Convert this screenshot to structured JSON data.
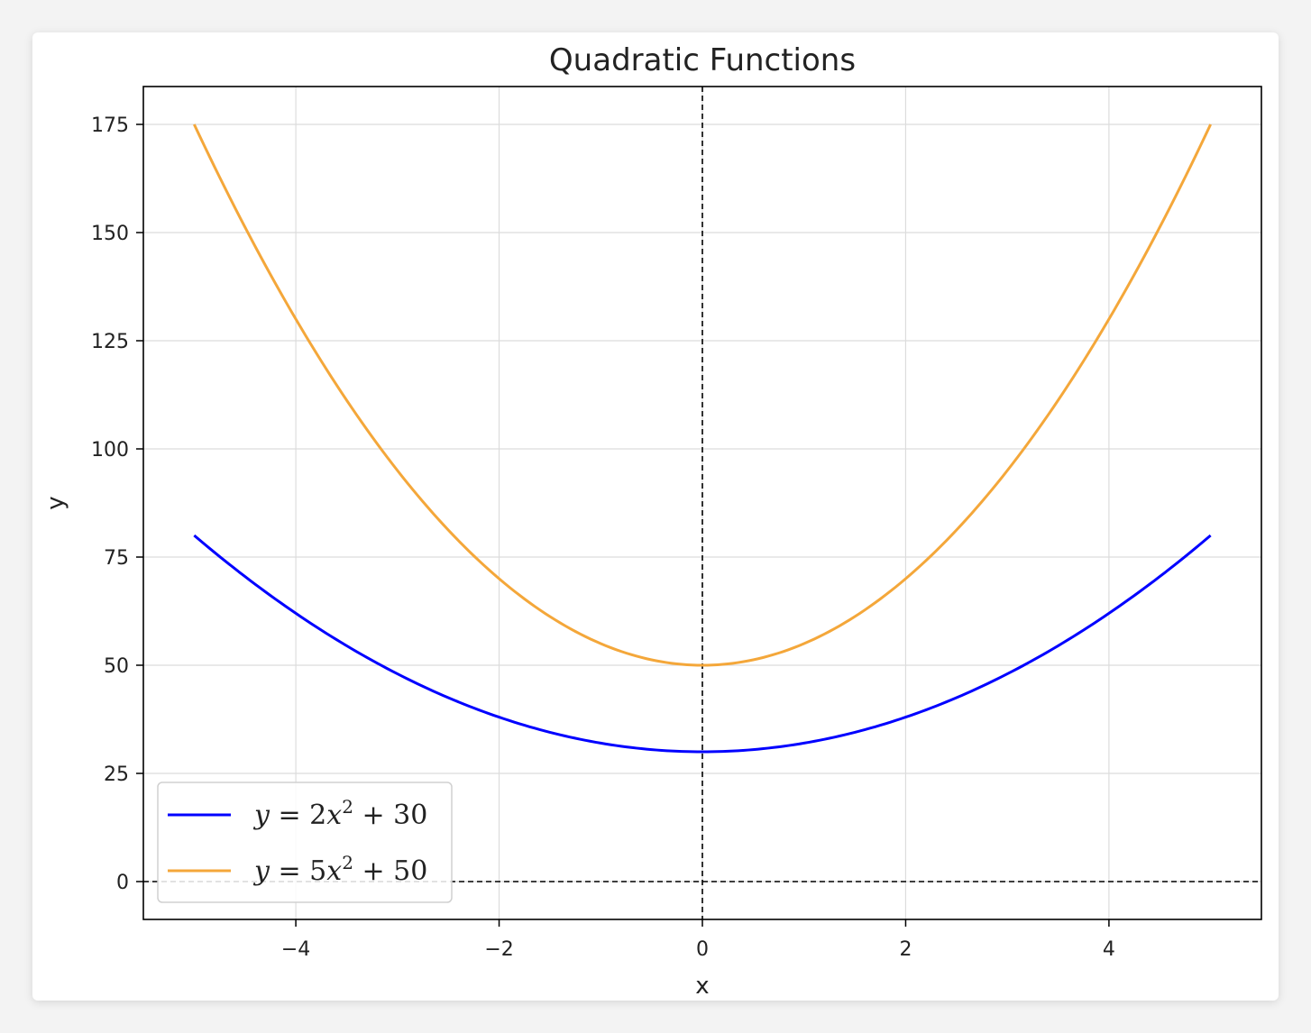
{
  "chart_data": {
    "type": "line",
    "title": "Quadratic Functions",
    "xlabel": "x",
    "ylabel": "y",
    "xlim": [
      -5.5,
      5.5
    ],
    "ylim": [
      -8.75,
      183.75
    ],
    "xticks": [
      -4,
      -2,
      0,
      2,
      4
    ],
    "xtick_labels": [
      "−4",
      "−2",
      "0",
      "2",
      "4"
    ],
    "yticks": [
      0,
      25,
      50,
      75,
      100,
      125,
      150,
      175
    ],
    "ytick_labels": [
      "0",
      "25",
      "50",
      "75",
      "100",
      "125",
      "150",
      "175"
    ],
    "grid": true,
    "reference_lines": [
      {
        "orientation": "horizontal",
        "value": 0,
        "style": "dashed",
        "color": "#000000"
      },
      {
        "orientation": "vertical",
        "value": 0,
        "style": "dashed",
        "color": "#000000"
      }
    ],
    "legend_position": "lower-left",
    "series": [
      {
        "name": "y = 2x² + 30",
        "color": "#0000ff",
        "function": {
          "a": 2,
          "c": 30
        },
        "x_range": [
          -5,
          5
        ],
        "legend": {
          "lhs": "y",
          "coef": "2",
          "var": "x",
          "exp": "2",
          "rest": " + 30"
        }
      },
      {
        "name": "y = 5x² + 50",
        "color": "#f4a73a",
        "function": {
          "a": 5,
          "c": 50
        },
        "x_range": [
          -5,
          5
        ],
        "legend": {
          "lhs": "y",
          "coef": "5",
          "var": "x",
          "exp": "2",
          "rest": " + 50"
        }
      }
    ]
  }
}
